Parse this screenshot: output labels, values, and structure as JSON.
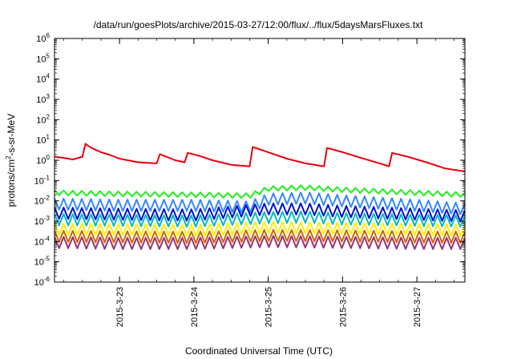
{
  "chart_data": {
    "type": "line",
    "title": "/data/run/goesPlots/archive/2015-03-27/12:00/flux/../flux/5daysMarsFluxes.txt",
    "xlabel": "Coordinated Universal Time (UTC)",
    "ylabel": "protons/cm²-s-sr-MeV",
    "yscale": "log",
    "ylim": [
      1e-06,
      1000000
    ],
    "xlim": [
      "2015-03-22T03:00",
      "2015-03-27T15:30"
    ],
    "x_ticks": [
      "2015-3-23",
      "2015-3-24",
      "2015-3-25",
      "2015-3-26",
      "2015-3-27"
    ],
    "y_ticks": [
      "10-6",
      "10-5",
      "10-4",
      "10-3",
      "10-2",
      "10-1",
      "100",
      "101",
      "102",
      "103",
      "104",
      "105",
      "106"
    ],
    "grid": false,
    "legend": "none",
    "series": [
      {
        "color": "#e8000b",
        "x": [
          "2015-03-22T03:00",
          "2015-03-22T06:00",
          "2015-03-22T09:00",
          "2015-03-22T12:00",
          "2015-03-22T13:00",
          "2015-03-22T14:00",
          "2015-03-22T15:00",
          "2015-03-22T18:00",
          "2015-03-22T21:00",
          "2015-03-23T00:00",
          "2015-03-23T06:00",
          "2015-03-23T12:00",
          "2015-03-23T13:00",
          "2015-03-23T18:00",
          "2015-03-23T21:00",
          "2015-03-23T22:00",
          "2015-03-24T02:00",
          "2015-03-24T06:00",
          "2015-03-24T12:00",
          "2015-03-24T18:00",
          "2015-03-24T19:00",
          "2015-03-25T00:00",
          "2015-03-25T06:00",
          "2015-03-25T12:00",
          "2015-03-25T18:00",
          "2015-03-25T19:00",
          "2015-03-26T00:00",
          "2015-03-26T06:00",
          "2015-03-26T12:00",
          "2015-03-26T15:00",
          "2015-03-26T16:00",
          "2015-03-26T21:00",
          "2015-03-27T03:00",
          "2015-03-27T09:00",
          "2015-03-27T15:30"
        ],
        "y": [
          1.5,
          1.3,
          1.1,
          1.5,
          6.5,
          5.0,
          4.0,
          2.5,
          1.8,
          1.2,
          0.8,
          0.7,
          2.0,
          1.0,
          0.8,
          2.3,
          1.6,
          1.0,
          0.6,
          0.5,
          4.5,
          2.5,
          1.2,
          0.7,
          0.5,
          4.0,
          2.5,
          1.3,
          0.7,
          0.5,
          2.3,
          1.5,
          0.8,
          0.4,
          0.28
        ]
      },
      {
        "color": "#22ee22",
        "x": [
          "2015-03-22T03:00",
          "2015-03-23T00:00",
          "2015-03-24T00:00",
          "2015-03-24T18:00",
          "2015-03-25T00:00",
          "2015-03-25T12:00",
          "2015-03-26T00:00",
          "2015-03-27T00:00",
          "2015-03-27T15:30"
        ],
        "y": [
          0.025,
          0.022,
          0.02,
          0.018,
          0.04,
          0.045,
          0.035,
          0.025,
          0.02
        ]
      },
      {
        "color": "#3388ff",
        "x": [
          "2015-03-22T03:00",
          "2015-03-23T00:00",
          "2015-03-24T00:00",
          "2015-03-24T18:00",
          "2015-03-25T00:00",
          "2015-03-25T12:00",
          "2015-03-26T00:00",
          "2015-03-27T00:00",
          "2015-03-27T15:30"
        ],
        "y": [
          0.007,
          0.006,
          0.006,
          0.005,
          0.012,
          0.014,
          0.01,
          0.006,
          0.004
        ]
      },
      {
        "color": "#0011cc",
        "x": [
          "2015-03-22T03:00",
          "2015-03-23T00:00",
          "2015-03-24T00:00",
          "2015-03-25T00:00",
          "2015-03-25T12:00",
          "2015-03-26T00:00",
          "2015-03-27T00:00",
          "2015-03-27T15:30"
        ],
        "y": [
          0.0025,
          0.0022,
          0.002,
          0.004,
          0.004,
          0.003,
          0.0022,
          0.0018
        ]
      },
      {
        "color": "#00bbbb",
        "x": [
          "2015-03-22T03:00",
          "2015-03-23T00:00",
          "2015-03-24T00:00",
          "2015-03-25T00:00",
          "2015-03-25T12:00",
          "2015-03-26T00:00",
          "2015-03-27T00:00",
          "2015-03-27T15:30"
        ],
        "y": [
          0.0012,
          0.0011,
          0.001,
          0.0015,
          0.0016,
          0.0013,
          0.0011,
          0.001
        ]
      },
      {
        "color": "#ffee00",
        "x": [
          "2015-03-22T03:00",
          "2015-03-23T00:00",
          "2015-03-24T00:00",
          "2015-03-25T00:00",
          "2015-03-26T00:00",
          "2015-03-27T00:00",
          "2015-03-27T15:30"
        ],
        "y": [
          0.0004,
          0.0004,
          0.00035,
          0.0005,
          0.00045,
          0.0004,
          0.00035
        ]
      },
      {
        "color": "#cc6600",
        "x": [
          "2015-03-22T03:00",
          "2015-03-23T00:00",
          "2015-03-24T00:00",
          "2015-03-25T00:00",
          "2015-03-26T00:00",
          "2015-03-27T00:00",
          "2015-03-27T15:30"
        ],
        "y": [
          0.00018,
          0.00017,
          0.00016,
          0.0002,
          0.00019,
          0.00017,
          0.00016
        ]
      },
      {
        "color": "#993377",
        "x": [
          "2015-03-22T03:00",
          "2015-03-23T00:00",
          "2015-03-24T00:00",
          "2015-03-25T00:00",
          "2015-03-26T00:00",
          "2015-03-27T00:00",
          "2015-03-27T15:30"
        ],
        "y": [
          9e-05,
          8e-05,
          8e-05,
          0.0001,
          9e-05,
          8e-05,
          8e-05
        ]
      }
    ]
  }
}
